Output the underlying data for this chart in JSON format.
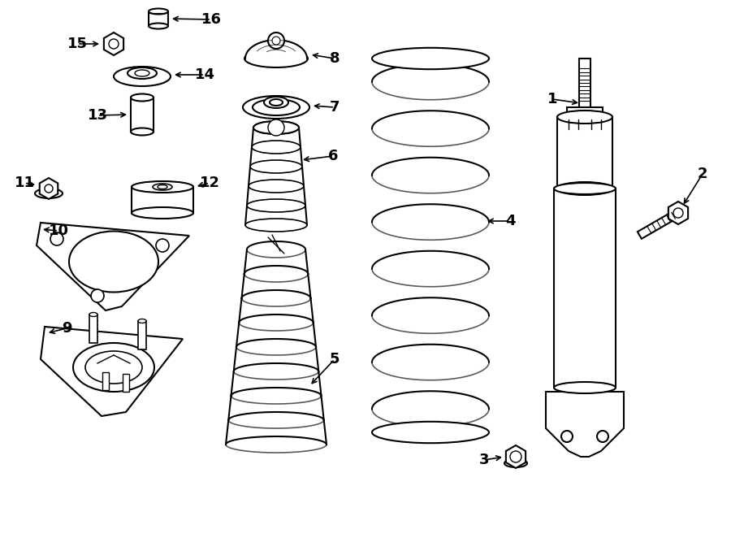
{
  "background_color": "#ffffff",
  "line_color": "#000000",
  "lw": 1.5,
  "figsize": [
    9.0,
    6.62
  ],
  "dpi": 100
}
